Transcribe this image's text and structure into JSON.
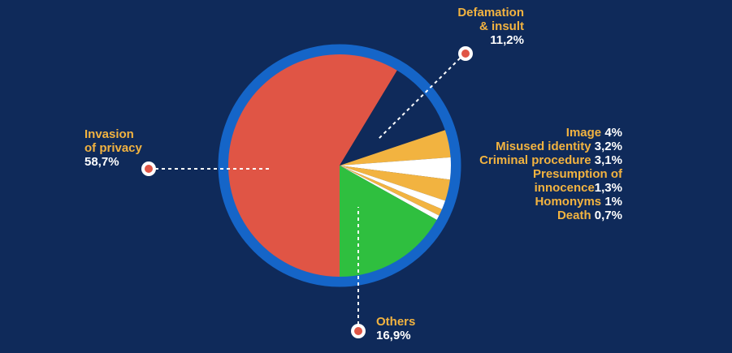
{
  "chart_data": {
    "type": "pie",
    "series": [
      {
        "name": "Invasion of privacy",
        "value_label": "58,7%",
        "value": 58.7,
        "color": "#e05545"
      },
      {
        "name": "Defamation & insult",
        "value_label": "11,2%",
        "value": 11.2,
        "color": "#0f2a5a"
      },
      {
        "name": "Image",
        "value_label": "4%",
        "value": 4.0,
        "color": "#f2b340"
      },
      {
        "name": "Misused identity",
        "value_label": "3,2%",
        "value": 3.2,
        "color": "#ffffff"
      },
      {
        "name": "Criminal procedure",
        "value_label": "3,1%",
        "value": 3.1,
        "color": "#f2b340"
      },
      {
        "name": "Presumption of innocence",
        "value_label": "1,3%",
        "value": 1.3,
        "color": "#ffffff"
      },
      {
        "name": "Homonyms",
        "value_label": "1%",
        "value": 1.0,
        "color": "#f2b340"
      },
      {
        "name": "Death",
        "value_label": "0,7%",
        "value": 0.7,
        "color": "#ffffff"
      },
      {
        "name": "Others",
        "value_label": "16,9%",
        "value": 16.9,
        "color": "#2fbf3f"
      }
    ],
    "labels": {
      "privacy": {
        "line1": "Invasion",
        "line2": "of privacy",
        "value": "58,7%"
      },
      "defamation": {
        "line1": "Defamation",
        "line2": "& insult",
        "value": "11,2%"
      },
      "image": {
        "name": "Image",
        "value": "4%"
      },
      "misused": {
        "name": "Misused identity",
        "value": "3,2%"
      },
      "criminal": {
        "name": "Criminal procedure",
        "value": "3,1%"
      },
      "presumption": {
        "line1": "Presumption of",
        "line2": "innocence",
        "value": "1,3%"
      },
      "homonyms": {
        "name": "Homonyms",
        "value": "1%"
      },
      "death": {
        "name": "Death",
        "value": "0,7%"
      },
      "others": {
        "name": "Others",
        "value": "16,9%"
      }
    }
  },
  "colors": {
    "background": "#0f2a5a",
    "ring": "#1565c8",
    "label_text": "#f2b340",
    "value_text": "#ffffff",
    "dot": "#e05545"
  }
}
